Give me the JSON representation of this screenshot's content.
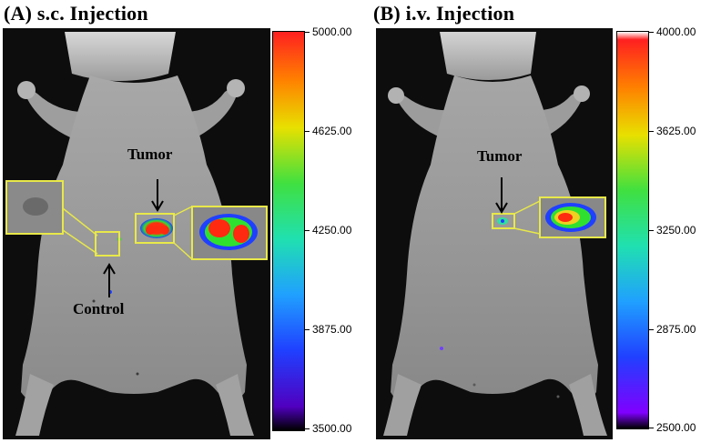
{
  "panels": [
    {
      "title": "(A) s.c. Injection",
      "annotations": {
        "tumor": "Tumor",
        "control": "Control"
      },
      "colorbar": {
        "ticks": [
          "5000.00",
          "4625.00",
          "4250.00",
          "3875.00",
          "3500.00"
        ],
        "min": 3500,
        "max": 5000
      }
    },
    {
      "title": "(B) i.v. Injection",
      "annotations": {
        "tumor": "Tumor"
      },
      "colorbar": {
        "ticks": [
          "4000.00",
          "3625.00",
          "3250.00",
          "2875.00",
          "2500.00"
        ],
        "min": 2500,
        "max": 4000
      }
    }
  ],
  "colors": {
    "background": "#0d0d0d",
    "frame": "#e8e84a",
    "signal_high": "#ff2a10",
    "signal_mid": "#30e030",
    "signal_low": "#2040ff"
  }
}
